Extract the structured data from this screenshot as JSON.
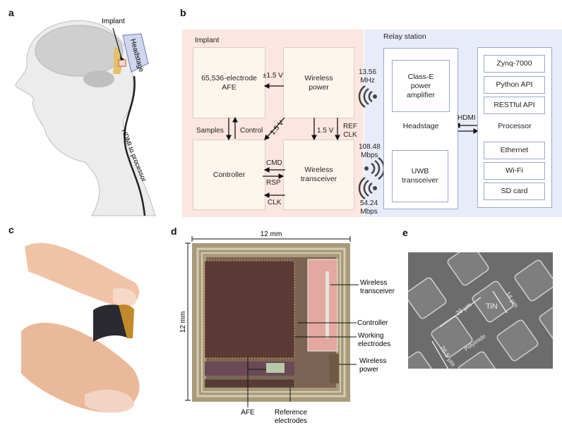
{
  "panels": {
    "a": "a",
    "b": "b",
    "c": "c",
    "d": "d",
    "e": "e"
  },
  "panel_a": {
    "implant_label": "Implant",
    "headstage_label": "Headstage",
    "cable_label": "HDMI to processor"
  },
  "panel_b": {
    "implant_title": "Implant",
    "afe": [
      "65,536-electrode",
      "AFE"
    ],
    "wireless_power": [
      "Wireless",
      "power"
    ],
    "controller": "Controller",
    "wireless_transceiver": [
      "Wireless",
      "transceiver"
    ],
    "pm15v": "±1.5 V",
    "samples": "Samples",
    "control": "Control",
    "diag_15v": "1.5 V",
    "v15": "1.5 V",
    "refclk": [
      "REF",
      "CLK"
    ],
    "cmd": "CMD",
    "rsp": "RSP",
    "clk": "CLK",
    "power_freq": [
      "13.56",
      "MHz"
    ],
    "uplink": [
      "108.48",
      "Mbps"
    ],
    "downlink": [
      "54.24",
      "Mbps"
    ],
    "relay_title": "Relay station",
    "class_e": [
      "Class-E",
      "power",
      "amplifier"
    ],
    "headstage": "Headstage",
    "uwb": [
      "UWB",
      "transceiver"
    ],
    "hdmi": "HDMI",
    "processor": "Processor",
    "processor_items": [
      "Zynq-7000",
      "Python API",
      "RESTful API",
      "Ethernet",
      "Wi-Fi",
      "SD card"
    ],
    "colors": {
      "implant_bg": "#fbe6e1",
      "relay_bg": "#e8ecf8",
      "box_border": "#9aa6cf"
    }
  },
  "panel_d": {
    "width": "12 mm",
    "height": "12 mm",
    "labels": [
      "Wireless transceiver",
      "Controller",
      "Working electrodes",
      "Wireless power",
      "AFE",
      "Reference electrodes"
    ],
    "wt": [
      "Wireless",
      "transceiver"
    ],
    "ctrl": "Controller",
    "we": [
      "Working",
      "electrodes"
    ],
    "wp": [
      "Wireless",
      "power"
    ],
    "afe": "AFE",
    "re": [
      "Reference",
      "electrodes"
    ]
  },
  "panel_e": {
    "tin": "TiN",
    "polyimide": "Polyimide",
    "pitch": "29 µm",
    "pad": "14 µm",
    "row": "26.5 µm"
  }
}
